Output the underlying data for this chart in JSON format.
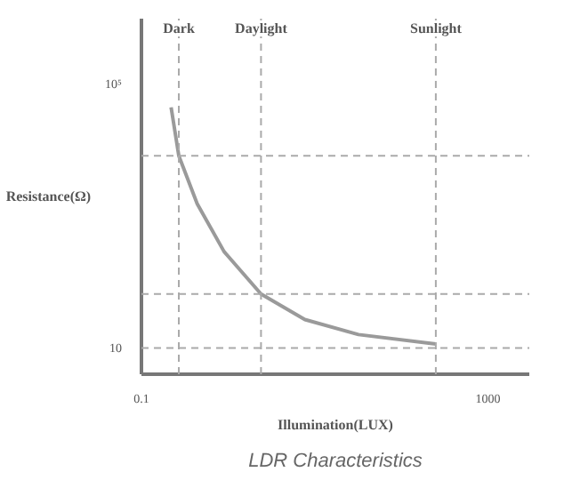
{
  "chart_data": {
    "type": "line",
    "title": "LDR Characteristics",
    "xlabel": "Illumination(LUX)",
    "ylabel": "Resistance(Ω)",
    "log": "xy",
    "grid": false,
    "marker": "none",
    "line_style": "solid",
    "tick_labels": true,
    "x": [
      0.22,
      0.27,
      0.44,
      0.9,
      2.4,
      7.7,
      32,
      250
    ],
    "series": [
      {
        "color": "#9a9a9a",
        "values": [
          45000,
          8300,
          1550,
          290,
          66,
          27,
          16,
          11.5
        ]
      }
    ],
    "xlim": [
      0.1,
      3000
    ],
    "ylim": [
      4,
      1000000
    ],
    "xticks": [
      0.1,
      1000
    ],
    "yticks": [
      10,
      {
        "value": 100000,
        "label": "10⁵"
      }
    ],
    "ref_lines": [
      {
        "axis": "x",
        "value": 0.27,
        "label": "Dark"
      },
      {
        "axis": "x",
        "value": 2.4,
        "label": "Daylight"
      },
      {
        "axis": "x",
        "value": 250,
        "label": "Sunlight"
      },
      {
        "axis": "y",
        "value": 8300,
        "label": null
      },
      {
        "axis": "y",
        "value": 66,
        "label": null
      },
      {
        "axis": "y",
        "value": 10,
        "label": null
      }
    ]
  }
}
